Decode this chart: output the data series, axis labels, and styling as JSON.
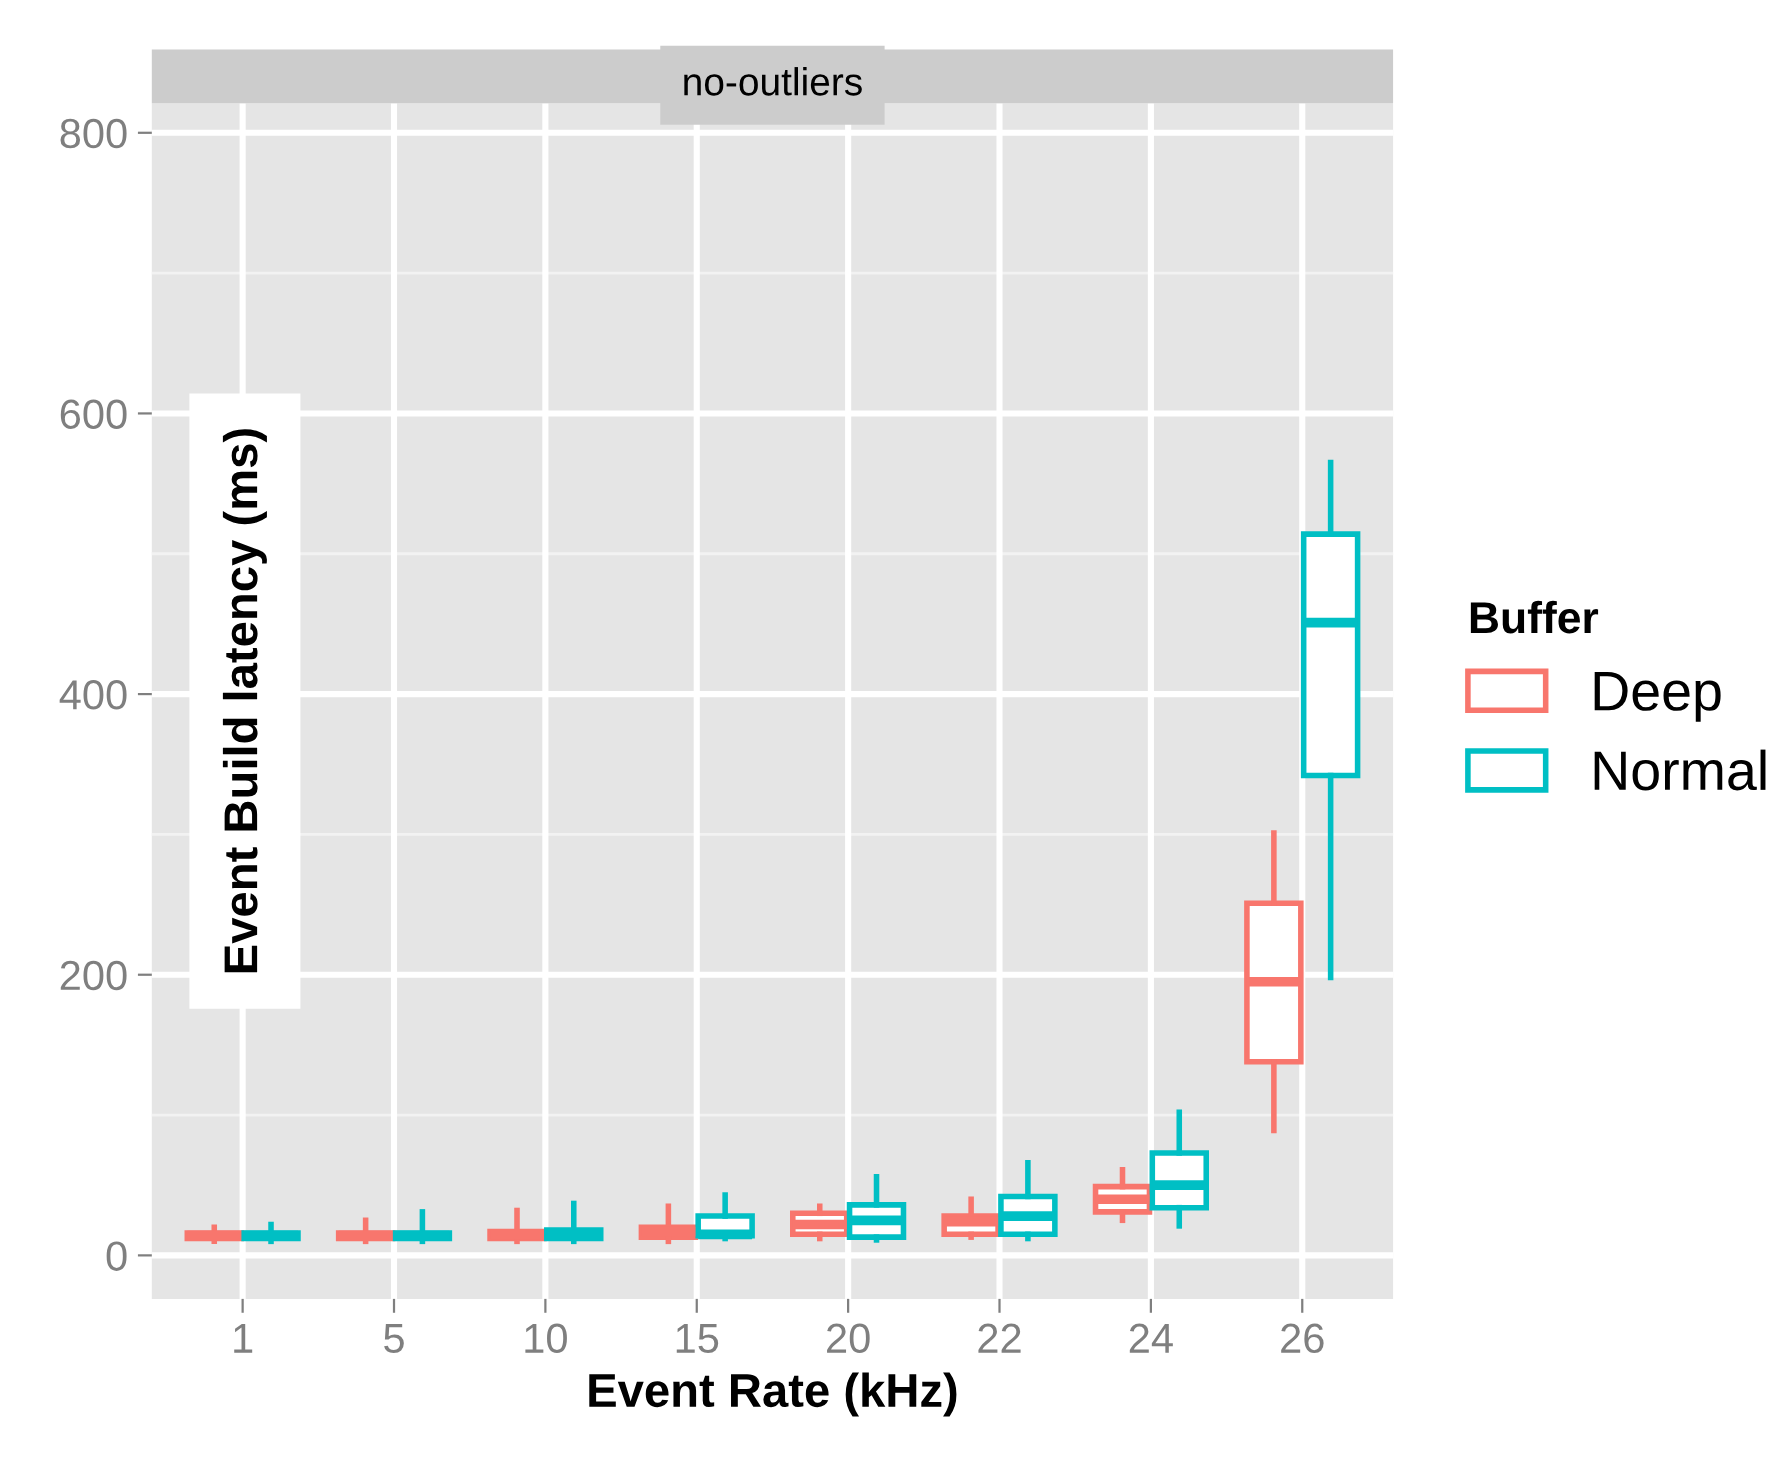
{
  "chart_data": {
    "type": "box",
    "subtitle": "no-outliers",
    "xlabel": "Event Rate (kHz)",
    "ylabel": "Event Build latency (ms)",
    "legend_title": "Buffer",
    "categories": [
      "1",
      "5",
      "10",
      "15",
      "20",
      "22",
      "24",
      "26"
    ],
    "ylim": [
      -31,
      821
    ],
    "yticks": [
      0,
      200,
      400,
      600,
      800
    ],
    "grid": true,
    "legend": "right",
    "series": [
      {
        "name": "Deep",
        "color": "#f8766d",
        "boxes": [
          {
            "low": 10,
            "q1": 12,
            "median": 14,
            "q3": 16,
            "high": 20
          },
          {
            "low": 10,
            "q1": 12,
            "median": 14,
            "q3": 16,
            "high": 25
          },
          {
            "low": 10,
            "q1": 12,
            "median": 15,
            "q3": 17,
            "high": 32
          },
          {
            "low": 10,
            "q1": 13,
            "median": 17,
            "q3": 20,
            "high": 35
          },
          {
            "low": 12,
            "q1": 15,
            "median": 22,
            "q3": 30,
            "high": 35
          },
          {
            "low": 13,
            "q1": 15,
            "median": 24,
            "q3": 28,
            "high": 40
          },
          {
            "low": 25,
            "q1": 31,
            "median": 40,
            "q3": 49,
            "high": 61
          },
          {
            "low": 89,
            "q1": 138,
            "median": 195,
            "q3": 251,
            "high": 301
          }
        ]
      },
      {
        "name": "Normal",
        "color": "#00bfc4",
        "boxes": [
          {
            "low": 10,
            "q1": 12,
            "median": 14,
            "q3": 16,
            "high": 22
          },
          {
            "low": 10,
            "q1": 12,
            "median": 14,
            "q3": 16,
            "high": 31
          },
          {
            "low": 10,
            "q1": 12,
            "median": 15,
            "q3": 18,
            "high": 37
          },
          {
            "low": 12,
            "q1": 14,
            "median": 15,
            "q3": 28,
            "high": 43
          },
          {
            "low": 11,
            "q1": 13,
            "median": 25,
            "q3": 36,
            "high": 56
          },
          {
            "low": 12,
            "q1": 15,
            "median": 28,
            "q3": 42,
            "high": 66
          },
          {
            "low": 21,
            "q1": 34,
            "median": 50,
            "q3": 73,
            "high": 102
          },
          {
            "low": 198,
            "q1": 342,
            "median": 451,
            "q3": 514,
            "high": 565
          }
        ]
      }
    ]
  }
}
